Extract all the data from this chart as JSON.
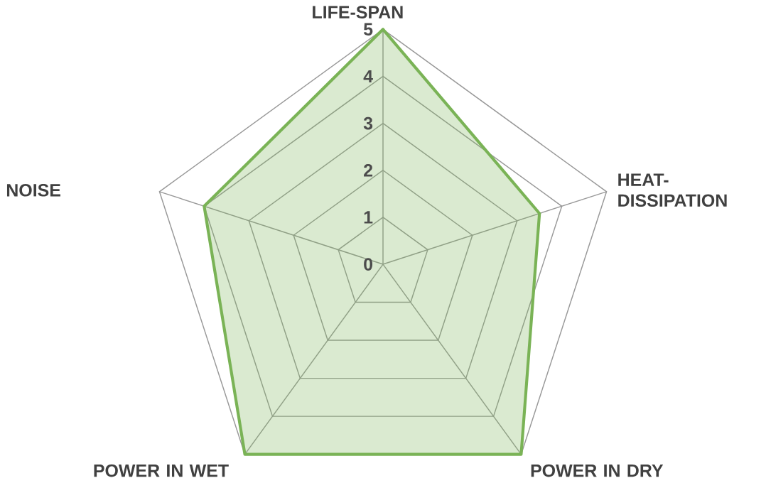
{
  "chart_data": {
    "type": "radar",
    "categories": [
      "LIFE-SPAN",
      "HEAT-DISSIPATION",
      "POWER IN DRY",
      "POWER IN WET",
      "NOISE"
    ],
    "series": [
      {
        "color": "#7ab356",
        "values": [
          5,
          3.5,
          5,
          5,
          4
        ]
      }
    ],
    "ylim": [
      0,
      5
    ],
    "yticks": [
      0,
      1,
      2,
      3,
      4,
      5
    ],
    "grid": true
  }
}
